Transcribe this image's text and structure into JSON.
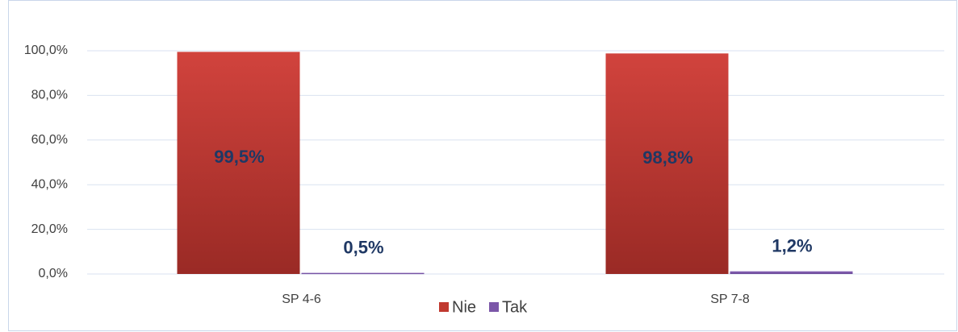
{
  "chart_data": {
    "type": "bar",
    "categories": [
      "SP 4-6",
      "SP 7-8"
    ],
    "series": [
      {
        "name": "Nie",
        "color": "#c0392f",
        "values": [
          99.5,
          98.8
        ],
        "value_labels": [
          "99,5%",
          "98,8%"
        ]
      },
      {
        "name": "Tak",
        "color": "#7b56a8",
        "values": [
          0.5,
          1.2
        ],
        "value_labels": [
          "0,5%",
          "1,2%"
        ]
      }
    ],
    "ylim": [
      0,
      100
    ],
    "yticks": [
      {
        "value": 0,
        "label": "0,0%"
      },
      {
        "value": 20,
        "label": "20,0%"
      },
      {
        "value": 40,
        "label": "40,0%"
      },
      {
        "value": 60,
        "label": "60,0%"
      },
      {
        "value": 80,
        "label": "80,0%"
      },
      {
        "value": 100,
        "label": "100,0%"
      }
    ],
    "grid": true,
    "legend": "bottom"
  }
}
